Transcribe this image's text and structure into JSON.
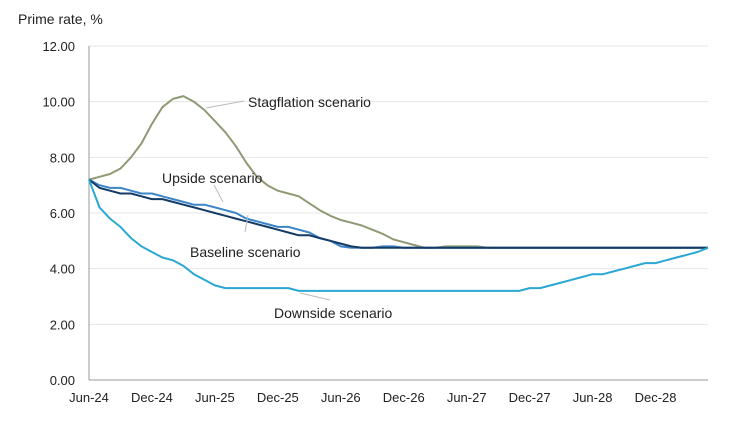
{
  "chart_data": {
    "type": "line",
    "ylabel": "Prime rate, %",
    "ylim": [
      0,
      12
    ],
    "yticks": [
      "0.00",
      "2.00",
      "4.00",
      "6.00",
      "8.00",
      "10.00",
      "12.00"
    ],
    "xtick_labels": [
      "Jun-24",
      "Dec-24",
      "Jun-25",
      "Dec-25",
      "Jun-26",
      "Dec-26",
      "Jun-27",
      "Dec-27",
      "Jun-28",
      "Dec-28"
    ],
    "x_start": "Jun-24",
    "x_frequency": "monthly",
    "grid": "horizontal",
    "series": [
      {
        "name": "Stagflation scenario",
        "color": "#8e9a74",
        "values": [
          7.2,
          7.3,
          7.4,
          7.6,
          8.0,
          8.5,
          9.2,
          9.8,
          10.1,
          10.2,
          10.0,
          9.7,
          9.3,
          8.9,
          8.4,
          7.8,
          7.3,
          7.0,
          6.8,
          6.7,
          6.6,
          6.35,
          6.1,
          5.9,
          5.75,
          5.65,
          5.55,
          5.4,
          5.25,
          5.05,
          4.95,
          4.85,
          4.75,
          4.75,
          4.8,
          4.8,
          4.8,
          4.8,
          4.75,
          4.75,
          4.75,
          4.75,
          4.75,
          4.75,
          4.75,
          4.75,
          4.75,
          4.75,
          4.75,
          4.75,
          4.75,
          4.75,
          4.75,
          4.75,
          4.75,
          4.75,
          4.75,
          4.75,
          4.75,
          4.75
        ]
      },
      {
        "name": "Upside scenario",
        "color": "#3d85c6",
        "values": [
          7.2,
          7.0,
          6.9,
          6.9,
          6.8,
          6.7,
          6.7,
          6.6,
          6.5,
          6.4,
          6.3,
          6.3,
          6.2,
          6.1,
          6.0,
          5.8,
          5.7,
          5.6,
          5.5,
          5.5,
          5.4,
          5.3,
          5.1,
          5.0,
          4.8,
          4.75,
          4.75,
          4.75,
          4.8,
          4.8,
          4.75,
          4.75,
          4.75,
          4.75,
          4.75,
          4.75,
          4.75,
          4.75,
          4.75,
          4.75,
          4.75,
          4.75,
          4.75,
          4.75,
          4.75,
          4.75,
          4.75,
          4.75,
          4.75,
          4.75,
          4.75,
          4.75,
          4.75,
          4.75,
          4.75,
          4.75,
          4.75,
          4.75,
          4.75,
          4.75
        ]
      },
      {
        "name": "Baseline scenario",
        "color": "#133b66",
        "values": [
          7.2,
          6.9,
          6.8,
          6.7,
          6.7,
          6.6,
          6.5,
          6.5,
          6.4,
          6.3,
          6.2,
          6.1,
          6.0,
          5.9,
          5.8,
          5.7,
          5.6,
          5.5,
          5.4,
          5.3,
          5.2,
          5.2,
          5.1,
          5.0,
          4.9,
          4.8,
          4.75,
          4.75,
          4.75,
          4.75,
          4.75,
          4.75,
          4.75,
          4.75,
          4.75,
          4.75,
          4.75,
          4.75,
          4.75,
          4.75,
          4.75,
          4.75,
          4.75,
          4.75,
          4.75,
          4.75,
          4.75,
          4.75,
          4.75,
          4.75,
          4.75,
          4.75,
          4.75,
          4.75,
          4.75,
          4.75,
          4.75,
          4.75,
          4.75,
          4.75
        ]
      },
      {
        "name": "Downside scenario",
        "color": "#2aa8d2",
        "values": [
          7.2,
          6.2,
          5.8,
          5.5,
          5.1,
          4.8,
          4.6,
          4.4,
          4.3,
          4.1,
          3.8,
          3.6,
          3.4,
          3.3,
          3.3,
          3.3,
          3.3,
          3.3,
          3.3,
          3.3,
          3.2,
          3.2,
          3.2,
          3.2,
          3.2,
          3.2,
          3.2,
          3.2,
          3.2,
          3.2,
          3.2,
          3.2,
          3.2,
          3.2,
          3.2,
          3.2,
          3.2,
          3.2,
          3.2,
          3.2,
          3.2,
          3.2,
          3.3,
          3.3,
          3.4,
          3.5,
          3.6,
          3.7,
          3.8,
          3.8,
          3.9,
          4.0,
          4.1,
          4.2,
          4.2,
          4.3,
          4.4,
          4.5,
          4.6,
          4.75
        ]
      }
    ]
  }
}
